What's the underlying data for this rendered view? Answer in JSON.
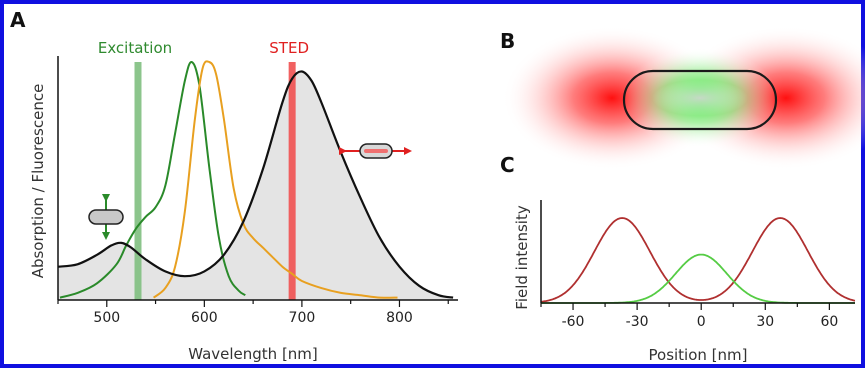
{
  "panels": {
    "a": "A",
    "b": "B",
    "c": "C"
  },
  "colors": {
    "frame": "#1010e0",
    "excitation": "#2f8a2f",
    "excitation_band": "#7fbf7f",
    "sted": "#e02020",
    "sted_band": "#f05050",
    "absorption": "#111111",
    "green_fluor": "#2a8a2a",
    "orange_fluor": "#e8a020",
    "red_gauss": "#b03030",
    "green_gauss": "#55cc44",
    "shade": "#e4e4e4"
  },
  "chart_data": [
    {
      "type": "line",
      "panel": "A",
      "xlabel": "Wavelength [nm]",
      "ylabel": "Absorption / Fluorescence",
      "xlim": [
        450,
        860
      ],
      "ylim": [
        0,
        1
      ],
      "xticks": [
        500,
        600,
        700,
        800
      ],
      "annotations": [
        {
          "label": "Excitation",
          "x": 532,
          "color": "#2f8a2f",
          "band_color": "#7fbf7f"
        },
        {
          "label": "STED",
          "x": 690,
          "color": "#e02020",
          "band_color": "#f05050"
        }
      ],
      "series": [
        {
          "style": "absorption",
          "shaded": true,
          "color": "#111111",
          "x": [
            450,
            470,
            490,
            505,
            515,
            525,
            540,
            560,
            580,
            600,
            620,
            640,
            660,
            680,
            690,
            700,
            710,
            720,
            740,
            760,
            780,
            800,
            820,
            840,
            855
          ],
          "y": [
            0.14,
            0.15,
            0.19,
            0.23,
            0.24,
            0.22,
            0.17,
            0.12,
            0.1,
            0.12,
            0.19,
            0.33,
            0.55,
            0.83,
            0.93,
            0.96,
            0.92,
            0.83,
            0.62,
            0.43,
            0.26,
            0.14,
            0.06,
            0.02,
            0.01
          ]
        },
        {
          "style": "green",
          "color": "#2a8a2a",
          "x": [
            452,
            470,
            490,
            510,
            520,
            530,
            540,
            550,
            560,
            570,
            580,
            587,
            595,
            605,
            615,
            625,
            635,
            642
          ],
          "y": [
            0.01,
            0.03,
            0.07,
            0.15,
            0.23,
            0.3,
            0.35,
            0.39,
            0.48,
            0.7,
            0.92,
            1.0,
            0.9,
            0.56,
            0.26,
            0.1,
            0.04,
            0.02
          ]
        },
        {
          "style": "orange",
          "color": "#e8a020",
          "x": [
            548,
            560,
            570,
            580,
            590,
            598,
            605,
            612,
            620,
            630,
            640,
            650,
            660,
            670,
            680,
            690,
            700,
            720,
            740,
            760,
            780,
            798
          ],
          "y": [
            0.01,
            0.05,
            0.14,
            0.37,
            0.75,
            0.97,
            1.0,
            0.95,
            0.76,
            0.47,
            0.32,
            0.26,
            0.22,
            0.18,
            0.14,
            0.11,
            0.08,
            0.05,
            0.03,
            0.02,
            0.01,
            0.01
          ]
        }
      ]
    },
    {
      "type": "line",
      "panel": "C",
      "xlabel": "Position [nm]",
      "ylabel": "Field intensity",
      "xlim": [
        -75,
        72
      ],
      "ylim": [
        0,
        1
      ],
      "xticks": [
        -60,
        -30,
        0,
        30,
        60
      ],
      "xticklabels": [
        "-60",
        "-30",
        "0",
        "30",
        "60"
      ],
      "series": [
        {
          "style": "sted_gaussians",
          "color": "#b03030",
          "centers": [
            -37,
            37
          ],
          "peak": 1.0,
          "sigma": 13
        },
        {
          "style": "excitation_gaussian",
          "color": "#55cc44",
          "centers": [
            0
          ],
          "peak": 0.57,
          "sigma": 12
        }
      ]
    }
  ]
}
